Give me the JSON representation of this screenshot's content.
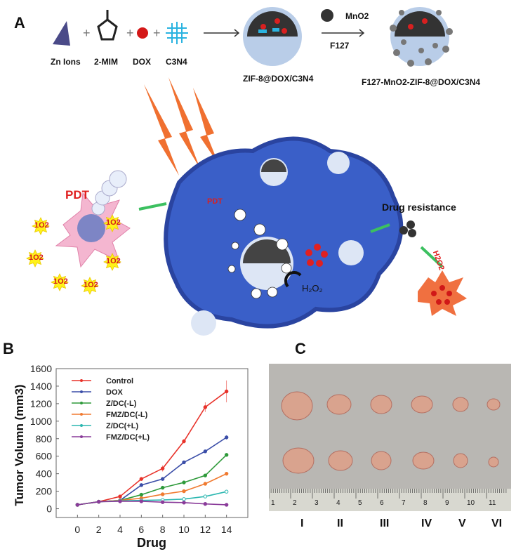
{
  "panel_a": {
    "label": "A",
    "reagents": [
      "Zn Ions",
      "2-MIM",
      "DOX",
      "C3N4"
    ],
    "product1": "ZIF-8@DOX/C3N4",
    "mno2": "MnO2",
    "f127": "F127",
    "product2": "F127-MnO2-ZIF-8@DOX/C3N4",
    "pdt": "PDT",
    "drug_resistance": "Drug resistance",
    "h2o2": "H2O2",
    "o2": "O2",
    "singlet_o2": "1O2"
  },
  "panel_b": {
    "label": "B"
  },
  "panel_c": {
    "label": "C",
    "groups": [
      "I",
      "II",
      "III",
      "IV",
      "V",
      "VI"
    ],
    "ruler_numbers": [
      "1",
      "2",
      "3",
      "4",
      "5",
      "6",
      "7",
      "8",
      "9",
      "10",
      "11"
    ]
  },
  "chart_data": {
    "type": "line",
    "xlabel": "Drug",
    "ylabel": "Tumor Volumn (mm3)",
    "x": [
      0,
      2,
      4,
      6,
      8,
      10,
      12,
      14
    ],
    "xticks": [
      0,
      2,
      4,
      6,
      8,
      10,
      12,
      14
    ],
    "yticks": [
      0,
      200,
      400,
      600,
      800,
      1000,
      1200,
      1400,
      1600
    ],
    "xlim": [
      -2,
      16
    ],
    "ylim": [
      -100,
      1600
    ],
    "legend_position": "top-left",
    "grid": false,
    "series": [
      {
        "name": "Control",
        "color": "#e8322a",
        "values": [
          45,
          80,
          140,
          340,
          460,
          770,
          1160,
          1340
        ],
        "errors": [
          0,
          0,
          10,
          20,
          35,
          25,
          55,
          125
        ]
      },
      {
        "name": "DOX",
        "color": "#3b4ea8",
        "values": [
          45,
          80,
          95,
          270,
          340,
          530,
          655,
          815
        ],
        "errors": [
          0,
          0,
          0,
          10,
          20,
          20,
          10,
          25
        ]
      },
      {
        "name": "Z/DC(-L)",
        "color": "#2e9a3a",
        "values": [
          45,
          80,
          95,
          160,
          240,
          300,
          380,
          615
        ],
        "errors": [
          0,
          0,
          0,
          8,
          8,
          8,
          10,
          15
        ]
      },
      {
        "name": "FMZ/DC(-L)",
        "color": "#f07a30",
        "values": [
          45,
          80,
          95,
          120,
          165,
          200,
          285,
          400
        ],
        "errors": [
          0,
          0,
          0,
          5,
          5,
          5,
          8,
          8
        ]
      },
      {
        "name": "Z/DC(+L)",
        "color": "#2bb7b0",
        "values": [
          45,
          80,
          90,
          95,
          100,
          110,
          140,
          195
        ],
        "errors": [
          0,
          0,
          0,
          0,
          5,
          5,
          5,
          5
        ]
      },
      {
        "name": "FMZ/DC(+L)",
        "color": "#8a3c9a",
        "values": [
          45,
          80,
          85,
          85,
          75,
          70,
          55,
          45
        ],
        "errors": [
          0,
          0,
          0,
          0,
          0,
          0,
          0,
          0
        ]
      }
    ]
  }
}
